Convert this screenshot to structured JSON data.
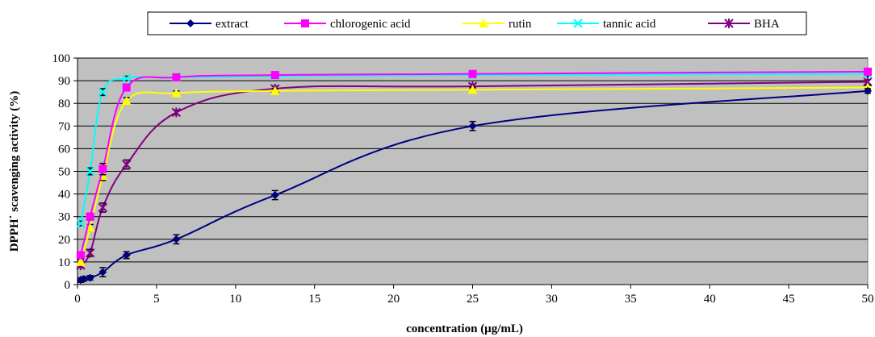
{
  "chart_data": {
    "type": "line",
    "title": "",
    "xlabel": "concentration (μg/mL)",
    "ylabel": "DPPH˙ scavenging activity (%)",
    "xlim": [
      0,
      50
    ],
    "ylim": [
      0,
      100
    ],
    "xticks": [
      0,
      5,
      10,
      15,
      20,
      25,
      30,
      35,
      40,
      45,
      50
    ],
    "yticks": [
      0,
      10,
      20,
      30,
      40,
      50,
      60,
      70,
      80,
      90,
      100
    ],
    "grid": "horizontal",
    "plot_background": "#c0c0c0",
    "legend_position": "top",
    "series": [
      {
        "name": "extract",
        "color": "#000080",
        "marker": "diamond",
        "x": [
          0.2,
          0.4,
          0.8,
          1.6,
          3.1,
          6.25,
          12.5,
          25,
          50
        ],
        "y": [
          2,
          2.5,
          3,
          5.5,
          13,
          20,
          39.5,
          70,
          85.5
        ],
        "err": [
          1,
          1,
          1,
          2,
          1.5,
          2,
          2,
          2,
          1
        ]
      },
      {
        "name": "chlorogenic acid",
        "color": "#ff00ff",
        "marker": "square",
        "x": [
          0.2,
          0.8,
          1.6,
          3.1,
          6.25,
          12.5,
          25,
          50
        ],
        "y": [
          13,
          30,
          51,
          87,
          91.5,
          92.5,
          93,
          94
        ],
        "err": [
          1,
          1.5,
          2.5,
          1.5,
          1,
          1,
          1,
          1
        ]
      },
      {
        "name": "rutin",
        "color": "#ffff00",
        "marker": "triangle",
        "x": [
          0.2,
          0.8,
          1.6,
          3.1,
          6.25,
          12.5,
          25,
          50
        ],
        "y": [
          10,
          25,
          48,
          81,
          84.5,
          85.5,
          86,
          87
        ],
        "err": [
          1,
          1.5,
          2,
          1.5,
          1,
          1,
          1,
          1
        ]
      },
      {
        "name": "tannic acid",
        "color": "#00ffff",
        "marker": "x",
        "x": [
          0.2,
          0.8,
          1.6,
          3.1,
          6.25,
          12.5,
          25,
          50
        ],
        "y": [
          27,
          50,
          85,
          91,
          91.5,
          92,
          92.5,
          93
        ],
        "err": [
          1,
          1.5,
          1.5,
          1,
          1,
          1,
          1,
          1
        ]
      },
      {
        "name": "BHA",
        "color": "#800080",
        "marker": "star",
        "x": [
          0.2,
          0.8,
          1.6,
          3.1,
          6.25,
          12.5,
          25,
          50
        ],
        "y": [
          8.5,
          14,
          34,
          53,
          76,
          86.5,
          87.5,
          89.5
        ],
        "err": [
          1,
          1.5,
          2,
          2,
          1,
          1,
          1,
          1
        ]
      }
    ]
  }
}
